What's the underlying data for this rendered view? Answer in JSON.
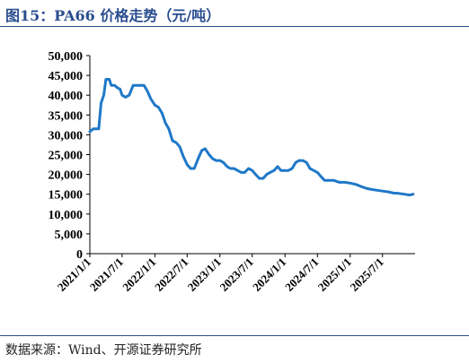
{
  "header": {
    "title": "图15：PA66 价格走势（元/吨）"
  },
  "footer": {
    "source": "数据来源：Wind、开源证券研究所"
  },
  "colors": {
    "line": "#1f78c8",
    "title": "#2a4d8f",
    "axis": "#000000"
  },
  "chart_data": {
    "type": "line",
    "title": "PA66 价格走势（元/吨）",
    "xlabel": "",
    "ylabel": "",
    "ylim": [
      0,
      50000
    ],
    "yticks": [
      "0",
      "5,000",
      "10,000",
      "15,000",
      "20,000",
      "25,000",
      "30,000",
      "35,000",
      "40,000",
      "45,000",
      "50,000"
    ],
    "xlim": [
      "2021/1/1",
      "2025/12/31"
    ],
    "xticks": [
      "2021/1/1",
      "2021/7/1",
      "2022/1/1",
      "2022/7/1",
      "2023/1/1",
      "2023/7/1",
      "2024/1/1",
      "2024/7/1",
      "2025/1/1",
      "2025/7/1"
    ],
    "grid": false,
    "legend": "none",
    "series": [
      {
        "x": [
          "2021/1/1",
          "2021/1/20",
          "2021/2/10",
          "2021/2/20",
          "2021/3/5",
          "2021/3/20",
          "2021/4/1",
          "2021/4/20",
          "2021/5/1",
          "2021/5/20",
          "2021/6/1",
          "2021/6/20",
          "2021/7/1",
          "2021/7/20",
          "2021/8/10",
          "2021/9/1",
          "2021/9/20",
          "2021/10/10",
          "2021/11/1",
          "2021/11/20",
          "2021/12/10",
          "2022/1/1",
          "2022/1/20",
          "2022/2/10",
          "2022/3/1",
          "2022/3/20",
          "2022/4/10",
          "2022/5/1",
          "2022/5/20",
          "2022/6/10",
          "2022/7/1",
          "2022/7/20",
          "2022/8/10",
          "2022/9/1",
          "2022/9/20",
          "2022/10/10",
          "2022/11/1",
          "2022/11/20",
          "2022/12/10",
          "2023/1/1",
          "2023/1/20",
          "2023/2/10",
          "2023/3/1",
          "2023/3/20",
          "2023/4/10",
          "2023/5/1",
          "2023/5/20",
          "2023/6/10",
          "2023/7/1",
          "2023/7/20",
          "2023/8/10",
          "2023/9/1",
          "2023/9/20",
          "2023/10/10",
          "2023/11/1",
          "2023/11/20",
          "2023/12/10",
          "2024/1/1",
          "2024/1/20",
          "2024/2/10",
          "2024/3/1",
          "2024/3/20",
          "2024/4/10",
          "2024/5/1",
          "2024/5/20",
          "2024/6/10",
          "2024/7/1",
          "2024/7/20",
          "2024/8/10",
          "2024/9/1",
          "2024/10/1",
          "2024/11/1",
          "2024/12/1",
          "2025/1/1",
          "2025/2/1",
          "2025/3/1",
          "2025/4/1",
          "2025/5/1",
          "2025/6/1",
          "2025/7/1",
          "2025/8/1",
          "2025/9/1",
          "2025/10/1",
          "2025/11/1",
          "2025/12/1",
          "2025/12/20"
        ],
        "values": [
          30800,
          31500,
          31500,
          31500,
          38000,
          40000,
          44000,
          44000,
          42500,
          42500,
          42000,
          41500,
          40000,
          39500,
          40000,
          42500,
          42500,
          42500,
          42500,
          41000,
          39000,
          37500,
          37000,
          35500,
          33000,
          31500,
          28500,
          28000,
          27000,
          24500,
          22500,
          21500,
          21500,
          24000,
          26000,
          26500,
          25000,
          24000,
          23500,
          23500,
          23000,
          22000,
          21500,
          21500,
          21000,
          20500,
          20500,
          21500,
          21000,
          20000,
          19000,
          19000,
          20000,
          20500,
          21000,
          22000,
          21000,
          21000,
          21000,
          21500,
          23000,
          23500,
          23500,
          23000,
          21500,
          21000,
          20500,
          19500,
          18500,
          18500,
          18500,
          18000,
          18000,
          17800,
          17500,
          17000,
          16500,
          16200,
          16000,
          15800,
          15600,
          15300,
          15200,
          15000,
          14800,
          15000
        ]
      }
    ]
  }
}
